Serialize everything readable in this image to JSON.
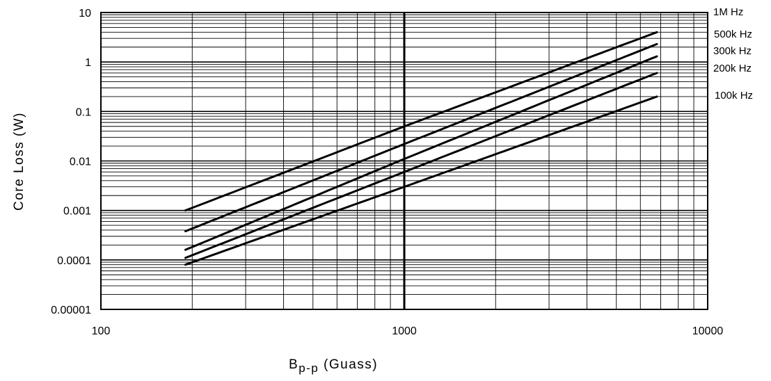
{
  "chart_data": {
    "type": "line",
    "x_scale": "log",
    "y_scale": "log",
    "xlim": [
      100,
      10000
    ],
    "ylim": [
      1e-05,
      10
    ],
    "grid": true,
    "xlabel_main": "B",
    "xlabel_sub": "p-p",
    "xlabel_rest": " (Guass)",
    "ylabel": "Core Loss (W)",
    "x_ticks": [
      {
        "value": 100,
        "label": "100"
      },
      {
        "value": 1000,
        "label": "1000"
      },
      {
        "value": 10000,
        "label": "10000"
      }
    ],
    "y_ticks": [
      {
        "value": 10,
        "label": "10"
      },
      {
        "value": 1,
        "label": "1"
      },
      {
        "value": 0.1,
        "label": "0.1"
      },
      {
        "value": 0.01,
        "label": "0.01"
      },
      {
        "value": 0.001,
        "label": "0.001"
      },
      {
        "value": 0.0001,
        "label": "0.0001"
      },
      {
        "value": 1e-05,
        "label": "0.00001"
      }
    ],
    "series": [
      {
        "name": "1M Hz",
        "x": [
          190,
          1000,
          6800
        ],
        "y": [
          0.001,
          0.05,
          4.0
        ]
      },
      {
        "name": "500k Hz",
        "x": [
          190,
          1000,
          6800
        ],
        "y": [
          0.00038,
          0.022,
          2.3
        ]
      },
      {
        "name": "300k Hz",
        "x": [
          190,
          1000,
          6800
        ],
        "y": [
          0.00016,
          0.011,
          1.3
        ]
      },
      {
        "name": "200k Hz",
        "x": [
          190,
          1000,
          6800
        ],
        "y": [
          0.00011,
          0.006,
          0.6
        ]
      },
      {
        "name": "100k Hz",
        "x": [
          190,
          1000,
          6800
        ],
        "y": [
          8e-05,
          0.003,
          0.2
        ]
      }
    ]
  }
}
